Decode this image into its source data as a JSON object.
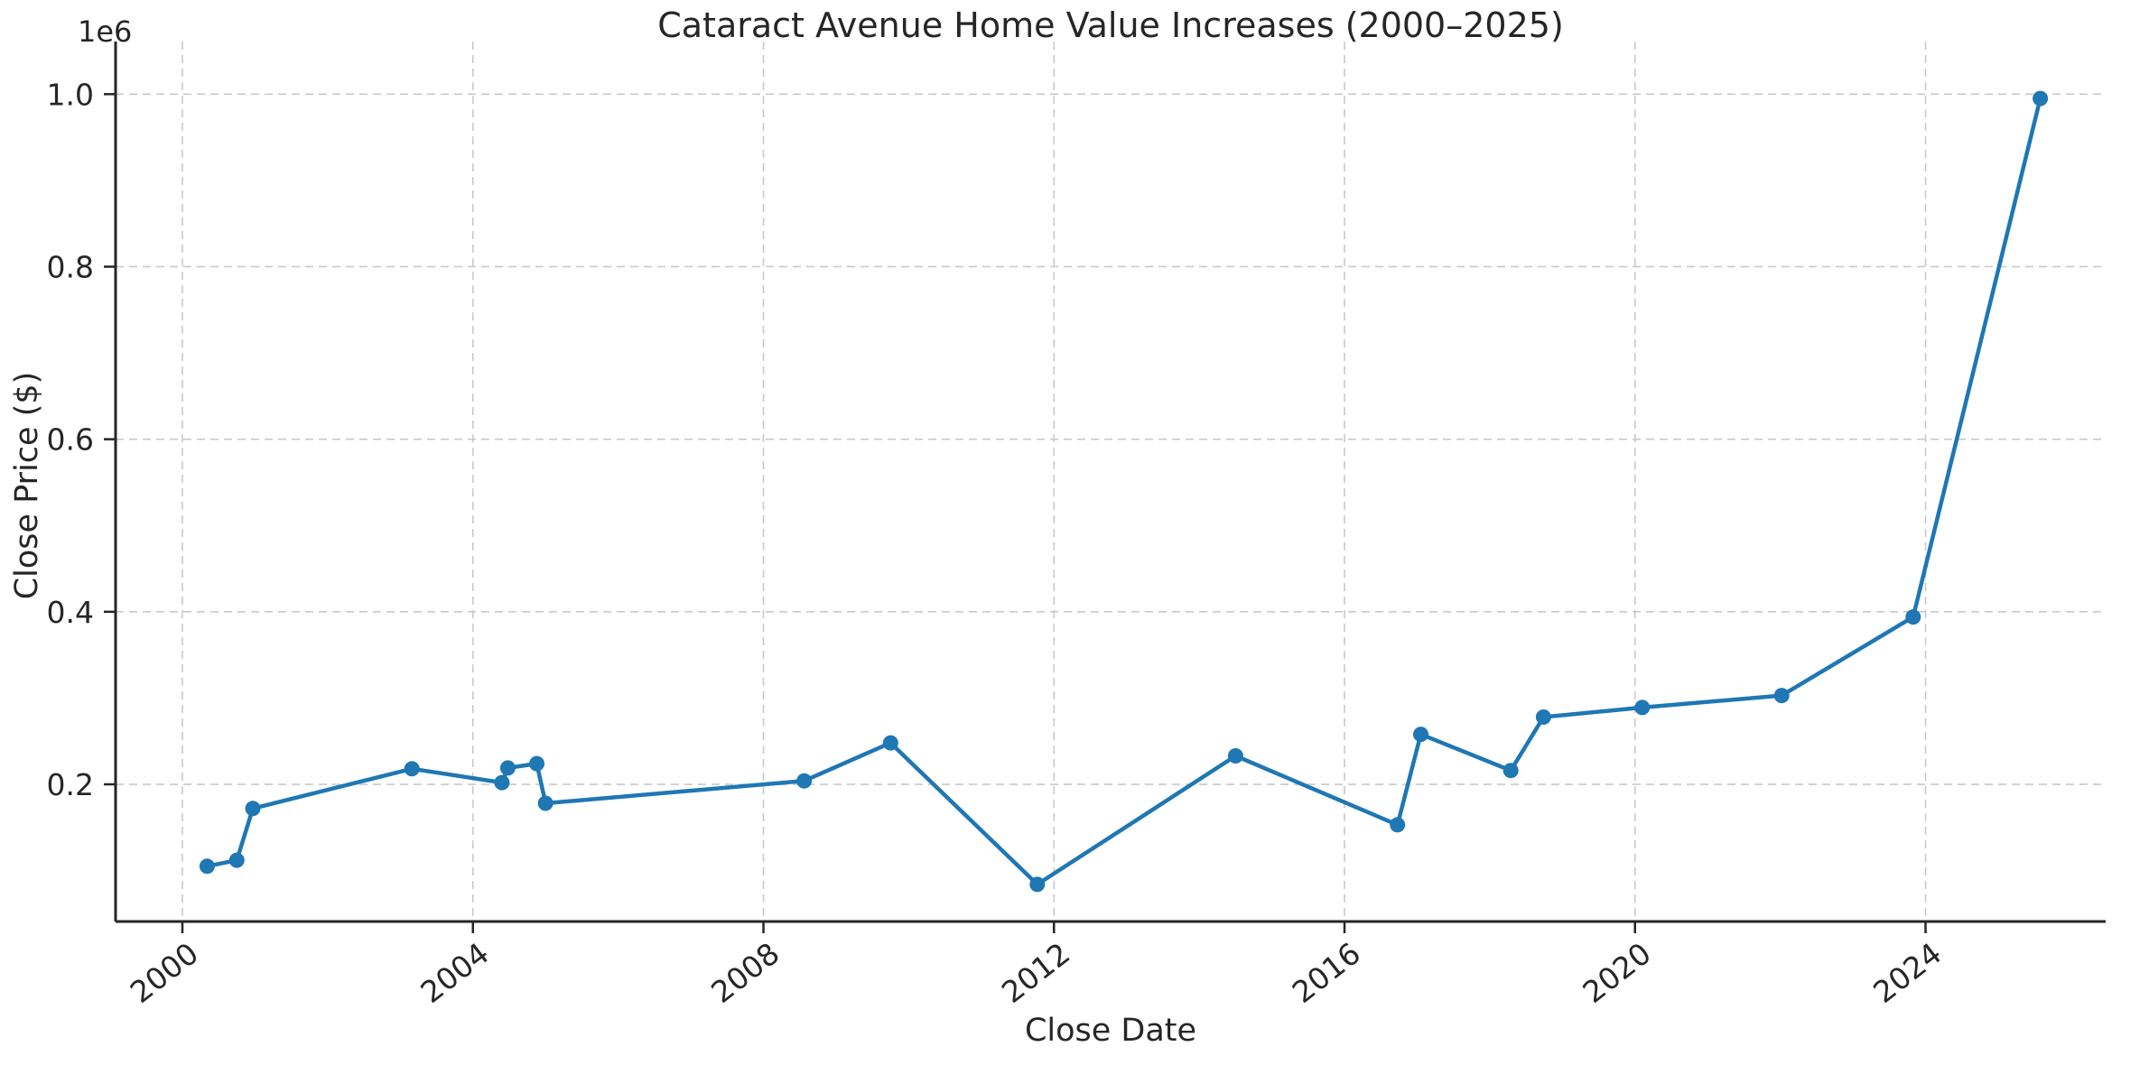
{
  "chart_data": {
    "type": "line",
    "title": "Cataract Avenue Home Value Increases (2000–2025)",
    "xlabel": "Close Date",
    "ylabel": "Close Price ($)",
    "y_offset_label": "1e6",
    "grid": true,
    "grid_style": "dashed",
    "legend": false,
    "xlim": [
      1999.08,
      2026.48
    ],
    "ylim": [
      41000,
      1061000
    ],
    "x_ticks": [
      {
        "label": "2000",
        "value": 2000
      },
      {
        "label": "2004",
        "value": 2004
      },
      {
        "label": "2008",
        "value": 2008
      },
      {
        "label": "2012",
        "value": 2012
      },
      {
        "label": "2016",
        "value": 2016
      },
      {
        "label": "2020",
        "value": 2020
      },
      {
        "label": "2024",
        "value": 2024
      }
    ],
    "y_ticks": [
      {
        "label": "0.2",
        "value": 200000
      },
      {
        "label": "0.4",
        "value": 400000
      },
      {
        "label": "0.6",
        "value": 600000
      },
      {
        "label": "0.8",
        "value": 800000
      },
      {
        "label": "1.0",
        "value": 1000000
      }
    ],
    "series": [
      {
        "name": "Close Price",
        "color": "#1f77b4",
        "marker": "circle",
        "points": [
          [
            2000.34,
            105000
          ],
          [
            2000.75,
            112000
          ],
          [
            2000.97,
            172000
          ],
          [
            2003.16,
            218000
          ],
          [
            2004.4,
            202000
          ],
          [
            2004.48,
            219000
          ],
          [
            2004.88,
            224000
          ],
          [
            2005.0,
            178000
          ],
          [
            2008.56,
            204000
          ],
          [
            2009.75,
            248000
          ],
          [
            2011.77,
            84000
          ],
          [
            2014.5,
            233000
          ],
          [
            2016.73,
            153000
          ],
          [
            2017.05,
            258000
          ],
          [
            2018.29,
            216000
          ],
          [
            2018.74,
            278000
          ],
          [
            2020.1,
            289000
          ],
          [
            2022.02,
            303000
          ],
          [
            2023.83,
            394000
          ],
          [
            2025.58,
            995000
          ]
        ]
      }
    ]
  }
}
